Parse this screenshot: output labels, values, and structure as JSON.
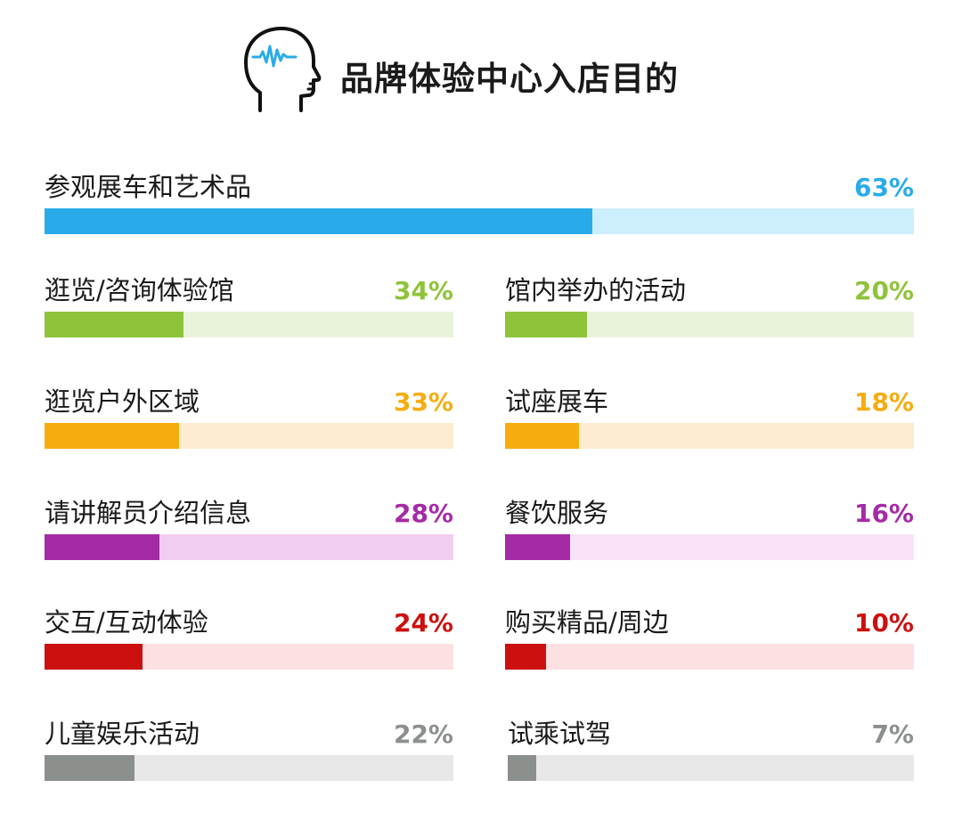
{
  "chart_data": {
    "type": "bar",
    "title": "品牌体验中心入店目的",
    "value_suffix": "%",
    "xlim": [
      0,
      100
    ],
    "grid": false,
    "legend": "none",
    "items": [
      {
        "label": "参观展车和艺术品",
        "value": 63,
        "value_text": "63%",
        "color": "#29abea",
        "track": "#cdeefc"
      },
      {
        "label": "逛览/咨询体验馆",
        "value": 34,
        "value_text": "34%",
        "color": "#8fc33a",
        "track": "#e9f3da"
      },
      {
        "label": "逛览户外区域",
        "value": 33,
        "value_text": "33%",
        "color": "#f6ac0e",
        "track": "#fdecd0"
      },
      {
        "label": "请讲解员介绍信息",
        "value": 28,
        "value_text": "28%",
        "color": "#a52aa6",
        "track": "#f2cdf2"
      },
      {
        "label": "交互/互动体验",
        "value": 24,
        "value_text": "24%",
        "color": "#cc1010",
        "track": "#fde0e2"
      },
      {
        "label": "儿童娱乐活动",
        "value": 22,
        "value_text": "22%",
        "color": "#8c908d",
        "track": "#e8e8e8"
      },
      {
        "label": "馆内举办的活动",
        "value": 20,
        "value_text": "20%",
        "color": "#8fc33a",
        "track": "#e9f3da"
      },
      {
        "label": "试座展车",
        "value": 18,
        "value_text": "18%",
        "color": "#f6ac0e",
        "track": "#fdecd0"
      },
      {
        "label": "餐饮服务",
        "value": 16,
        "value_text": "16%",
        "color": "#a52aa6",
        "track": "#f7e2f7"
      },
      {
        "label": "购买精品/周边",
        "value": 10,
        "value_text": "10%",
        "color": "#cc1010",
        "track": "#fde0e2"
      },
      {
        "label": "试乘试驾",
        "value": 7,
        "value_text": "7%",
        "color": "#8c908d",
        "track": "#e8e8e8"
      }
    ]
  },
  "icons": {
    "title_icon": "head-brainwave-icon"
  },
  "colors": {
    "icon_stroke": "#111111",
    "icon_wave": "#29abea"
  }
}
